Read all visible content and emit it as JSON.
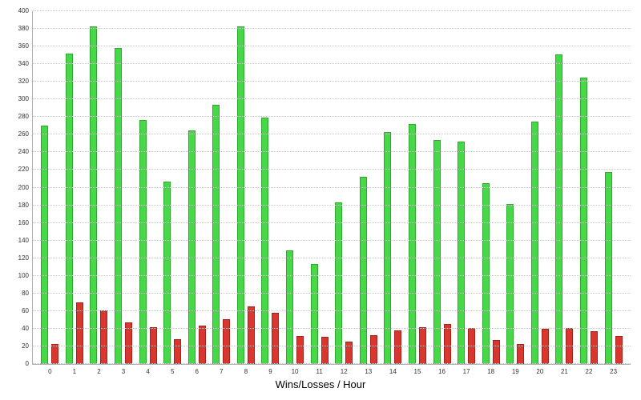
{
  "chart_data": {
    "type": "bar",
    "title": "",
    "xlabel": "Wins/Losses / Hour",
    "ylabel": "",
    "ylim": [
      0,
      400
    ],
    "ytick_step": 20,
    "grid": "horizontal-dotted",
    "legend": "none",
    "categories": [
      "0",
      "1",
      "2",
      "3",
      "4",
      "5",
      "6",
      "7",
      "8",
      "9",
      "10",
      "11",
      "12",
      "13",
      "14",
      "15",
      "16",
      "17",
      "18",
      "19",
      "20",
      "21",
      "22",
      "23"
    ],
    "series": [
      {
        "name": "Wins",
        "color": "#46d846",
        "edge": "#2fa82f",
        "values": [
          270,
          352,
          383,
          358,
          277,
          207,
          265,
          294,
          383,
          279,
          129,
          113,
          183,
          212,
          263,
          272,
          254,
          252,
          205,
          181,
          275,
          351,
          325,
          218
        ]
      },
      {
        "name": "Losses",
        "color": "#d8362e",
        "edge": "#a8221c",
        "values": [
          23,
          70,
          61,
          47,
          42,
          28,
          44,
          51,
          65,
          58,
          32,
          31,
          25,
          33,
          38,
          42,
          45,
          41,
          27,
          23,
          40,
          41,
          37,
          32
        ]
      }
    ]
  }
}
